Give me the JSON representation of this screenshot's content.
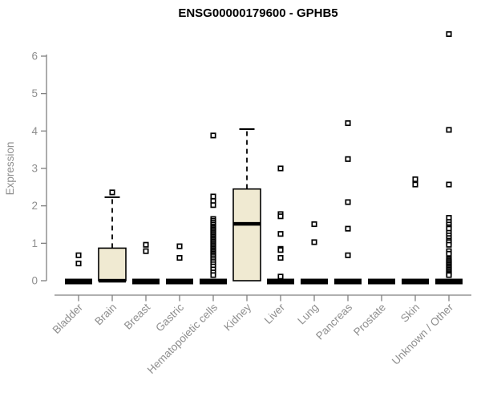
{
  "title": "ENSG00000179600 - GPHB5",
  "chart_data": {
    "type": "boxplot",
    "title": "ENSG00000179600 - GPHB5",
    "ylabel": "Expression",
    "xlabel": "",
    "ylim": [
      0,
      6.8
    ],
    "yticks": [
      0,
      1,
      2,
      3,
      4,
      5,
      6
    ],
    "grid": false,
    "legend": null,
    "colors": {
      "box_fill": "#F0EAD2",
      "box_stroke": "#000000",
      "median": "#000000",
      "axis": "#808080",
      "tick_label": "#8e8e8e",
      "title": "#000000",
      "outlier_fill": "#ffffff",
      "outlier_stroke": "#000000"
    },
    "categories": [
      "Bladder",
      "Brain",
      "Breast",
      "Gastric",
      "Hematopoietic cells",
      "Kidney",
      "Liver",
      "Lung",
      "Pancreas",
      "Prostate",
      "Skin",
      "Unknown / Other"
    ],
    "series": [
      {
        "name": "Bladder",
        "q1": 0,
        "median": 0,
        "q3": 0,
        "whisker_low": 0,
        "whisker_high": 0,
        "outliers": [
          0.68,
          0.46
        ]
      },
      {
        "name": "Brain",
        "q1": 0,
        "median": 0,
        "q3": 0.87,
        "whisker_low": 0,
        "whisker_high": 2.23,
        "outliers": [
          2.36
        ]
      },
      {
        "name": "Breast",
        "q1": 0,
        "median": 0,
        "q3": 0,
        "whisker_low": 0,
        "whisker_high": 0,
        "outliers": [
          0.96,
          0.79
        ]
      },
      {
        "name": "Gastric",
        "q1": 0,
        "median": 0,
        "q3": 0,
        "whisker_low": 0,
        "whisker_high": 0,
        "outliers": [
          0.92,
          0.61
        ]
      },
      {
        "name": "Hematopoietic cells",
        "q1": 0,
        "median": 0,
        "q3": 0,
        "whisker_low": 0,
        "whisker_high": 0,
        "outliers": [
          3.88,
          2.25,
          2.13,
          2.02,
          1.65,
          1.6,
          1.55,
          1.5,
          1.45,
          1.41,
          1.37,
          1.33,
          1.29,
          1.25,
          1.21,
          1.17,
          1.13,
          1.09,
          1.05,
          1.01,
          0.97,
          0.93,
          0.89,
          0.85,
          0.81,
          0.77,
          0.73,
          0.69,
          0.65,
          0.6,
          0.55,
          0.5,
          0.44,
          0.38,
          0.3,
          0.22,
          0.15
        ]
      },
      {
        "name": "Kidney",
        "q1": 0,
        "median": 1.52,
        "q3": 2.45,
        "whisker_low": 0,
        "whisker_high": 4.05,
        "outliers": []
      },
      {
        "name": "Liver",
        "q1": 0,
        "median": 0,
        "q3": 0,
        "whisker_low": 0,
        "whisker_high": 0,
        "outliers": [
          3.0,
          1.78,
          1.72,
          1.25,
          0.85,
          0.82,
          0.61,
          0.11
        ]
      },
      {
        "name": "Lung",
        "q1": 0,
        "median": 0,
        "q3": 0,
        "whisker_low": 0,
        "whisker_high": 0,
        "outliers": [
          1.51,
          1.03
        ]
      },
      {
        "name": "Pancreas",
        "q1": 0,
        "median": 0,
        "q3": 0,
        "whisker_low": 0,
        "whisker_high": 0,
        "outliers": [
          4.21,
          3.25,
          2.1,
          1.39,
          0.68
        ]
      },
      {
        "name": "Prostate",
        "q1": 0,
        "median": 0,
        "q3": 0,
        "whisker_low": 0,
        "whisker_high": 0,
        "outliers": []
      },
      {
        "name": "Skin",
        "q1": 0,
        "median": 0,
        "q3": 0,
        "whisker_low": 0,
        "whisker_high": 0,
        "outliers": [
          2.71,
          2.57
        ]
      },
      {
        "name": "Unknown / Other",
        "q1": 0,
        "median": 0,
        "q3": 0,
        "whisker_low": 0,
        "whisker_high": 0,
        "outliers": [
          6.59,
          4.03,
          2.57,
          1.68,
          1.57,
          1.5,
          1.43,
          1.39,
          1.28,
          1.21,
          1.14,
          1.07,
          1.03,
          0.96,
          0.79,
          0.72,
          0.58,
          0.54,
          0.5,
          0.46,
          0.42,
          0.38,
          0.34,
          0.3,
          0.26,
          0.22,
          0.18,
          0.15
        ]
      }
    ]
  }
}
